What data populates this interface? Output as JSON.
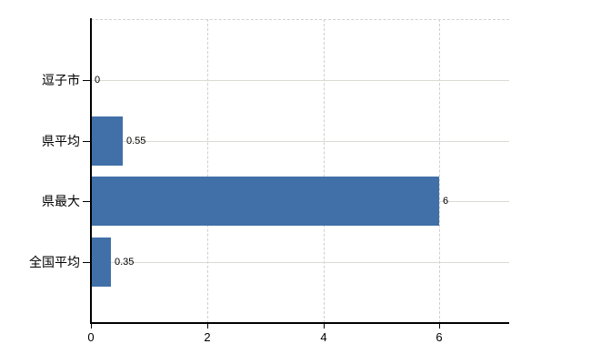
{
  "chart_data": {
    "type": "bar",
    "orientation": "horizontal",
    "title": "",
    "xlabel": "",
    "ylabel": "",
    "categories": [
      "逗子市",
      "県平均",
      "県最大",
      "全国平均"
    ],
    "values": [
      0,
      0.55,
      6,
      0.35
    ],
    "data_labels": [
      "0",
      "0.55",
      "6",
      "0.35"
    ],
    "xlim": [
      0,
      7.2
    ],
    "xticks": [
      0,
      2,
      4,
      6
    ],
    "xtick_labels": [
      "0",
      "2",
      "4",
      "6"
    ],
    "grid": true,
    "legend": "none",
    "colors": {
      "bar": "#4170a8",
      "grid_horizontal": "#d8dcd4",
      "grid_vertical": "#d2ccd0",
      "top_border": "#d0d0d0",
      "axis": "#000000",
      "text": "#000000",
      "background": "#ffffff"
    }
  }
}
